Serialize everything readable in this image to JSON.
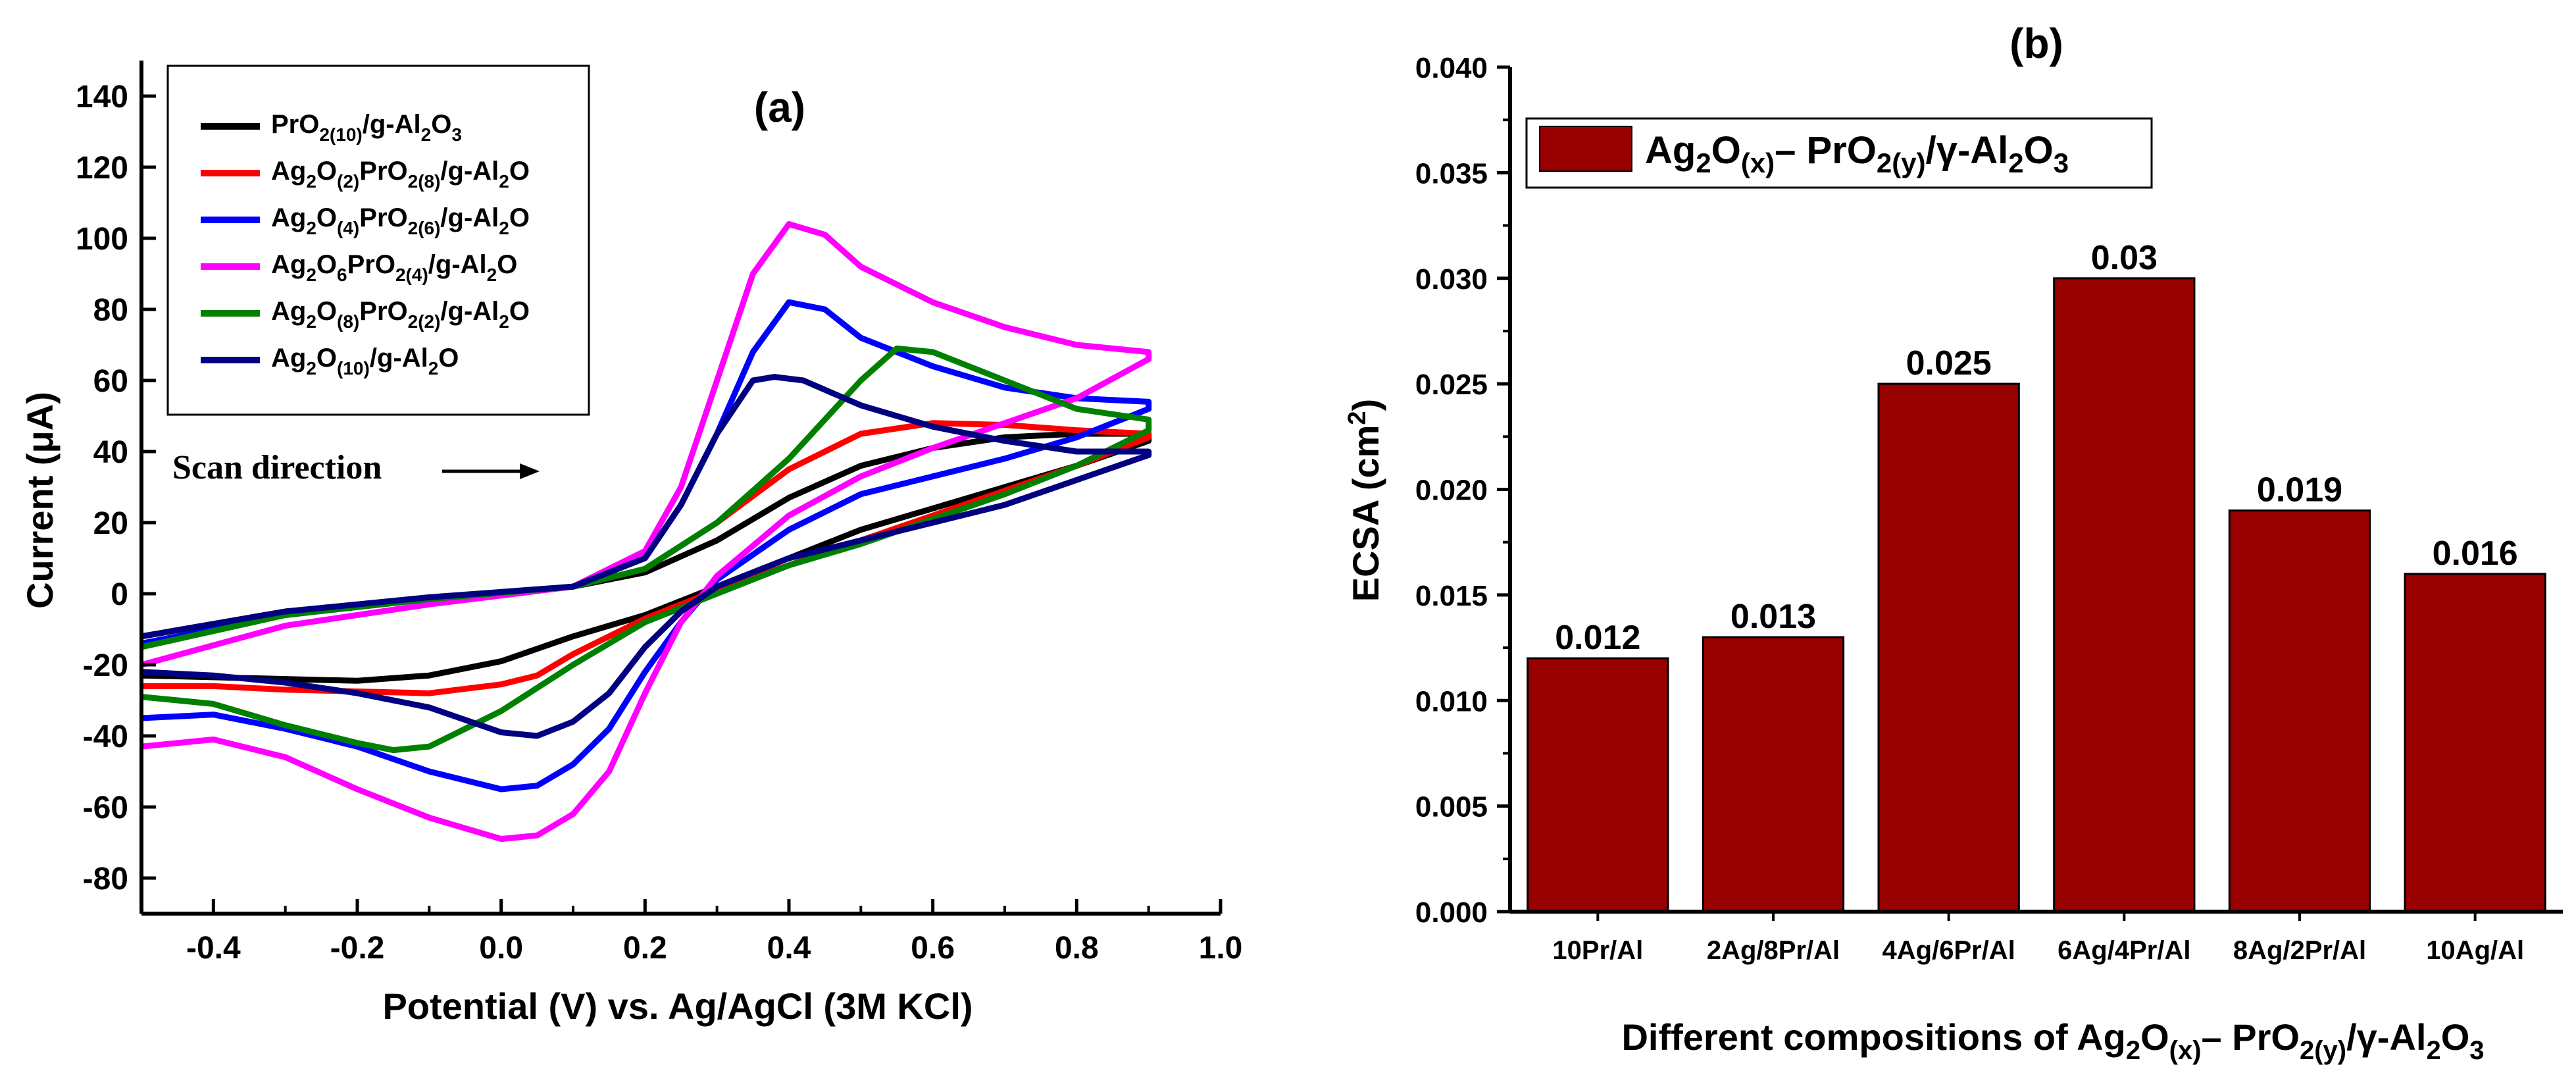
{
  "chart_data": [
    {
      "type": "line",
      "panel_label": "(a)",
      "title": "",
      "xlabel": "Potential (V) vs. Ag/AgCl (3M KCl)",
      "ylabel": "Current (μA)",
      "xlim": [
        -0.5,
        1.0
      ],
      "ylim": [
        -90,
        150
      ],
      "x_ticks": [
        -0.4,
        -0.2,
        0.0,
        0.2,
        0.4,
        0.6,
        0.8,
        1.0
      ],
      "x_tick_labels": [
        "-0.4",
        "-0.2",
        "0.0",
        "0.2",
        "0.4",
        "0.6",
        "0.8",
        "1.0"
      ],
      "y_ticks": [
        -80,
        -60,
        -40,
        -20,
        0,
        20,
        40,
        60,
        80,
        100,
        120,
        140
      ],
      "y_tick_labels": [
        "-80",
        "-60",
        "-40",
        "-20",
        "0",
        "20",
        "40",
        "60",
        "80",
        "100",
        "120",
        "140"
      ],
      "grid": false,
      "legend_position": "top-left",
      "annotation": "Scan direction",
      "series": [
        {
          "name": "PrO2(10)/g-Al2O3",
          "legend": [
            [
              "PrO",
              "n"
            ],
            [
              "2(10)",
              "sub"
            ],
            [
              "/g-Al",
              "n"
            ],
            [
              "2",
              "sub"
            ],
            [
              "O",
              "n"
            ],
            [
              "3",
              "sub"
            ]
          ],
          "color": "#000000",
          "points": [
            [
              -0.5,
              -12
            ],
            [
              -0.3,
              -5
            ],
            [
              -0.1,
              -1.5
            ],
            [
              0.1,
              2
            ],
            [
              0.2,
              6
            ],
            [
              0.3,
              15
            ],
            [
              0.4,
              27
            ],
            [
              0.5,
              36
            ],
            [
              0.6,
              41
            ],
            [
              0.7,
              44
            ],
            [
              0.8,
              45
            ],
            [
              0.9,
              45
            ],
            [
              0.9,
              43
            ],
            [
              0.8,
              36
            ],
            [
              0.7,
              30
            ],
            [
              0.6,
              24
            ],
            [
              0.5,
              18
            ],
            [
              0.4,
              10
            ],
            [
              0.3,
              2
            ],
            [
              0.2,
              -6
            ],
            [
              0.1,
              -12
            ],
            [
              0.0,
              -19
            ],
            [
              -0.1,
              -23
            ],
            [
              -0.2,
              -24.5
            ],
            [
              -0.3,
              -24
            ],
            [
              -0.4,
              -23.5
            ],
            [
              -0.5,
              -23
            ]
          ]
        },
        {
          "name": "Ag2O(2)PrO2(8)/g-Al2O",
          "legend": [
            [
              "Ag",
              "n"
            ],
            [
              "2",
              "sub"
            ],
            [
              "O",
              "n"
            ],
            [
              "(2)",
              "sub"
            ],
            [
              "PrO",
              "n"
            ],
            [
              "2(8)",
              "sub"
            ],
            [
              "/g-Al",
              "n"
            ],
            [
              "2",
              "sub"
            ],
            [
              "O",
              "n"
            ]
          ],
          "color": "#ff0000",
          "points": [
            [
              -0.5,
              -12
            ],
            [
              -0.3,
              -5
            ],
            [
              -0.1,
              -1.5
            ],
            [
              0.1,
              2
            ],
            [
              0.2,
              7
            ],
            [
              0.3,
              20
            ],
            [
              0.4,
              35
            ],
            [
              0.5,
              45
            ],
            [
              0.6,
              48
            ],
            [
              0.7,
              47.5
            ],
            [
              0.8,
              46
            ],
            [
              0.9,
              45
            ],
            [
              0.9,
              44
            ],
            [
              0.8,
              36
            ],
            [
              0.7,
              29
            ],
            [
              0.6,
              22
            ],
            [
              0.5,
              15
            ],
            [
              0.4,
              8
            ],
            [
              0.3,
              1
            ],
            [
              0.2,
              -7
            ],
            [
              0.1,
              -17
            ],
            [
              0.05,
              -23
            ],
            [
              0.0,
              -25.5
            ],
            [
              -0.1,
              -28
            ],
            [
              -0.2,
              -27.5
            ],
            [
              -0.3,
              -27
            ],
            [
              -0.4,
              -26
            ],
            [
              -0.5,
              -26
            ]
          ]
        },
        {
          "name": "Ag2O(4)PrO2(6)/g-Al2O",
          "legend": [
            [
              "Ag",
              "n"
            ],
            [
              "2",
              "sub"
            ],
            [
              "O",
              "n"
            ],
            [
              "(4)",
              "sub"
            ],
            [
              "PrO",
              "n"
            ],
            [
              "2(6)",
              "sub"
            ],
            [
              "/g-Al",
              "n"
            ],
            [
              "2",
              "sub"
            ],
            [
              "O",
              "n"
            ]
          ],
          "color": "#0000ff",
          "points": [
            [
              -0.5,
              -14
            ],
            [
              -0.3,
              -6
            ],
            [
              -0.1,
              -1.5
            ],
            [
              0.1,
              2
            ],
            [
              0.2,
              10
            ],
            [
              0.25,
              25
            ],
            [
              0.3,
              45
            ],
            [
              0.35,
              68
            ],
            [
              0.4,
              82
            ],
            [
              0.45,
              80
            ],
            [
              0.5,
              72
            ],
            [
              0.6,
              64
            ],
            [
              0.7,
              58
            ],
            [
              0.8,
              55
            ],
            [
              0.9,
              54
            ],
            [
              0.9,
              52
            ],
            [
              0.8,
              44
            ],
            [
              0.7,
              38
            ],
            [
              0.6,
              33
            ],
            [
              0.5,
              28
            ],
            [
              0.4,
              18
            ],
            [
              0.3,
              4
            ],
            [
              0.25,
              -8
            ],
            [
              0.2,
              -22
            ],
            [
              0.15,
              -38
            ],
            [
              0.1,
              -48
            ],
            [
              0.05,
              -54
            ],
            [
              0.0,
              -55
            ],
            [
              -0.1,
              -50
            ],
            [
              -0.2,
              -43
            ],
            [
              -0.3,
              -38
            ],
            [
              -0.4,
              -34
            ],
            [
              -0.5,
              -35
            ]
          ]
        },
        {
          "name": "Ag2O6PrO2(4)/g-Al2O",
          "legend": [
            [
              "Ag",
              "n"
            ],
            [
              "2",
              "sub"
            ],
            [
              "O",
              "n"
            ],
            [
              "6",
              "sub"
            ],
            [
              "PrO",
              "n"
            ],
            [
              "2(4)",
              "sub"
            ],
            [
              "/g-Al",
              "n"
            ],
            [
              "2",
              "sub"
            ],
            [
              "O",
              "n"
            ]
          ],
          "color": "#ff00ff",
          "points": [
            [
              -0.5,
              -20
            ],
            [
              -0.3,
              -9
            ],
            [
              -0.1,
              -3
            ],
            [
              0.1,
              2
            ],
            [
              0.2,
              12
            ],
            [
              0.25,
              30
            ],
            [
              0.3,
              60
            ],
            [
              0.35,
              90
            ],
            [
              0.4,
              104
            ],
            [
              0.45,
              101
            ],
            [
              0.5,
              92
            ],
            [
              0.6,
              82
            ],
            [
              0.7,
              75
            ],
            [
              0.8,
              70
            ],
            [
              0.9,
              68
            ],
            [
              0.9,
              66
            ],
            [
              0.8,
              55
            ],
            [
              0.7,
              48
            ],
            [
              0.6,
              41
            ],
            [
              0.5,
              33
            ],
            [
              0.4,
              22
            ],
            [
              0.3,
              5
            ],
            [
              0.25,
              -8
            ],
            [
              0.2,
              -28
            ],
            [
              0.15,
              -50
            ],
            [
              0.1,
              -62
            ],
            [
              0.05,
              -68
            ],
            [
              0.0,
              -69
            ],
            [
              -0.1,
              -63
            ],
            [
              -0.2,
              -55
            ],
            [
              -0.3,
              -46
            ],
            [
              -0.4,
              -41
            ],
            [
              -0.5,
              -43
            ]
          ]
        },
        {
          "name": "Ag2O(8)PrO2(2)/g-Al2O",
          "legend": [
            [
              "Ag",
              "n"
            ],
            [
              "2",
              "sub"
            ],
            [
              "O",
              "n"
            ],
            [
              "(8)",
              "sub"
            ],
            [
              "PrO",
              "n"
            ],
            [
              "2(2)",
              "sub"
            ],
            [
              "/g-Al",
              "n"
            ],
            [
              "2",
              "sub"
            ],
            [
              "O",
              "n"
            ]
          ],
          "color": "#008000",
          "points": [
            [
              -0.5,
              -15
            ],
            [
              -0.3,
              -6
            ],
            [
              -0.1,
              -1.5
            ],
            [
              0.1,
              2
            ],
            [
              0.2,
              7
            ],
            [
              0.3,
              20
            ],
            [
              0.4,
              38
            ],
            [
              0.5,
              60
            ],
            [
              0.55,
              69
            ],
            [
              0.6,
              68
            ],
            [
              0.7,
              60
            ],
            [
              0.8,
              52
            ],
            [
              0.9,
              49
            ],
            [
              0.9,
              46
            ],
            [
              0.8,
              36
            ],
            [
              0.7,
              28
            ],
            [
              0.6,
              21
            ],
            [
              0.5,
              14
            ],
            [
              0.4,
              8
            ],
            [
              0.3,
              0
            ],
            [
              0.2,
              -8
            ],
            [
              0.1,
              -20
            ],
            [
              0.0,
              -33
            ],
            [
              -0.1,
              -43
            ],
            [
              -0.15,
              -44
            ],
            [
              -0.2,
              -42
            ],
            [
              -0.3,
              -37
            ],
            [
              -0.4,
              -31
            ],
            [
              -0.5,
              -29
            ]
          ]
        },
        {
          "name": "Ag2O(10)/g-Al2O",
          "legend": [
            [
              "Ag",
              "n"
            ],
            [
              "2",
              "sub"
            ],
            [
              "O",
              "n"
            ],
            [
              "(10)",
              "sub"
            ],
            [
              "/g-Al",
              "n"
            ],
            [
              "2",
              "sub"
            ],
            [
              "O",
              "n"
            ]
          ],
          "color": "#000080",
          "points": [
            [
              -0.5,
              -12
            ],
            [
              -0.3,
              -5
            ],
            [
              -0.1,
              -1
            ],
            [
              0.1,
              2
            ],
            [
              0.2,
              10
            ],
            [
              0.25,
              25
            ],
            [
              0.3,
              45
            ],
            [
              0.35,
              60
            ],
            [
              0.38,
              61
            ],
            [
              0.42,
              60
            ],
            [
              0.5,
              53
            ],
            [
              0.6,
              47
            ],
            [
              0.7,
              43
            ],
            [
              0.8,
              40
            ],
            [
              0.9,
              40
            ],
            [
              0.9,
              39
            ],
            [
              0.8,
              32
            ],
            [
              0.7,
              25
            ],
            [
              0.6,
              20
            ],
            [
              0.5,
              15
            ],
            [
              0.4,
              10
            ],
            [
              0.3,
              2
            ],
            [
              0.25,
              -5
            ],
            [
              0.2,
              -15
            ],
            [
              0.15,
              -28
            ],
            [
              0.1,
              -36
            ],
            [
              0.05,
              -40
            ],
            [
              0.0,
              -39
            ],
            [
              -0.1,
              -32
            ],
            [
              -0.2,
              -28
            ],
            [
              -0.3,
              -25
            ],
            [
              -0.4,
              -23
            ],
            [
              -0.5,
              -22
            ]
          ]
        }
      ]
    },
    {
      "type": "bar",
      "panel_label": "(b)",
      "title": "",
      "xlabel": [
        [
          "Different compositions of Ag",
          "n"
        ],
        [
          "2",
          "sub"
        ],
        [
          "O",
          "n"
        ],
        [
          "(x)",
          "sub"
        ],
        [
          "– PrO",
          "n"
        ],
        [
          "2(y)",
          "sub"
        ],
        [
          "/γ-Al",
          "n"
        ],
        [
          "2",
          "sub"
        ],
        [
          "O",
          "n"
        ],
        [
          "3",
          "sub"
        ]
      ],
      "ylabel": "ECSA (cm2)",
      "ylim": [
        0,
        0.04
      ],
      "y_ticks": [
        0.0,
        0.005,
        0.01,
        0.015,
        0.02,
        0.025,
        0.03,
        0.035,
        0.04
      ],
      "y_tick_labels": [
        "0.000",
        "0.005",
        "0.010",
        "0.015",
        "0.020",
        "0.025",
        "0.030",
        "0.035",
        "0.040"
      ],
      "categories": [
        "10Pr/Al",
        "2Ag/8Pr/Al",
        "4Ag/6Pr/Al",
        "6Ag/4Pr/Al",
        "8Ag/2Pr/Al",
        "10Ag/Al"
      ],
      "values": [
        0.012,
        0.013,
        0.025,
        0.03,
        0.019,
        0.016
      ],
      "value_labels": [
        "0.012",
        "0.013",
        "0.025",
        "0.03",
        "0.019",
        "0.016"
      ],
      "bar_color": "#990000",
      "legend_position": "top-left",
      "legend": [
        [
          "Ag",
          "n"
        ],
        [
          "2",
          "sub"
        ],
        [
          "O",
          "n"
        ],
        [
          "(x)",
          "sub"
        ],
        [
          "– PrO",
          "n"
        ],
        [
          "2(y)",
          "sub"
        ],
        [
          "/γ-Al",
          "n"
        ],
        [
          "2",
          "sub"
        ],
        [
          "O",
          "n"
        ],
        [
          "3",
          "sub"
        ]
      ]
    }
  ]
}
